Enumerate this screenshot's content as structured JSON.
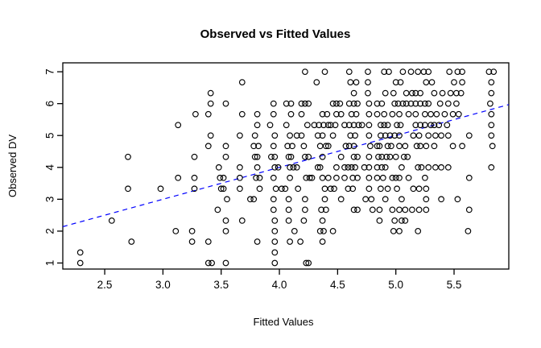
{
  "chart_data": {
    "type": "scatter",
    "title": "Observed vs Fitted Values",
    "xlabel": "Fitted Values",
    "ylabel": "Observed DV",
    "xlim": [
      2.14,
      5.97
    ],
    "ylim": [
      0.81,
      7.28
    ],
    "x_ticks": [
      "2.5",
      "3.0",
      "3.5",
      "4.0",
      "4.5",
      "5.0",
      "5.5"
    ],
    "x_tick_values": [
      2.5,
      3.0,
      3.5,
      4.0,
      4.5,
      5.0,
      5.5
    ],
    "y_ticks": [
      "1",
      "2",
      "3",
      "4",
      "5",
      "6",
      "7"
    ],
    "y_tick_values": [
      1,
      2,
      3,
      4,
      5,
      6,
      7
    ],
    "grid": false,
    "legend": "none",
    "point_style": "open-circle",
    "point_color": "#000000",
    "reference_line": {
      "slope": 1,
      "intercept": 0,
      "style": "dashed",
      "color": "#0000ff"
    },
    "rows": [
      {
        "y": 7.0,
        "x": [
          4.22,
          4.39,
          4.6,
          4.76,
          4.9,
          4.94,
          5.06,
          5.13,
          5.19,
          5.24,
          5.28,
          5.46,
          5.53,
          5.57,
          5.8,
          5.84
        ]
      },
      {
        "y": 6.67,
        "x": [
          3.68,
          4.32,
          4.61,
          4.66,
          4.76,
          5.0,
          5.04,
          5.26,
          5.31,
          5.5,
          5.57,
          5.82
        ]
      },
      {
        "y": 6.33,
        "x": [
          3.41,
          4.64,
          4.76,
          4.91,
          4.98,
          5.09,
          5.14,
          5.17,
          5.21,
          5.33,
          5.4,
          5.47,
          5.52,
          5.56,
          5.82
        ]
      },
      {
        "y": 6.0,
        "x": [
          3.41,
          3.54,
          3.95,
          4.06,
          4.1,
          4.19,
          4.22,
          4.25,
          4.46,
          4.49,
          4.52,
          4.6,
          4.64,
          4.67,
          4.77,
          4.84,
          4.88,
          4.99,
          5.02,
          5.06,
          5.09,
          5.13,
          5.17,
          5.21,
          5.25,
          5.28,
          5.38,
          5.45,
          5.52,
          5.81
        ]
      },
      {
        "y": 5.67,
        "x": [
          3.28,
          3.39,
          3.68,
          3.81,
          3.95,
          4.1,
          4.19,
          4.37,
          4.41,
          4.49,
          4.53,
          4.62,
          4.66,
          4.77,
          4.84,
          4.9,
          4.97,
          5.03,
          5.11,
          5.17,
          5.25,
          5.3,
          5.35,
          5.42,
          5.49,
          5.54,
          5.82
        ]
      },
      {
        "y": 5.33,
        "x": [
          3.13,
          3.81,
          3.92,
          4.06,
          4.24,
          4.3,
          4.34,
          4.38,
          4.42,
          4.44,
          4.48,
          4.56,
          4.6,
          4.64,
          4.68,
          4.71,
          4.77,
          4.87,
          4.9,
          4.93,
          5.01,
          5.04,
          5.17,
          5.21,
          5.25,
          5.3,
          5.33,
          5.37,
          5.44,
          5.82
        ]
      },
      {
        "y": 5.0,
        "x": [
          3.41,
          3.66,
          3.79,
          3.96,
          4.09,
          4.15,
          4.19,
          4.33,
          4.37,
          4.46,
          4.61,
          4.65,
          4.77,
          4.87,
          4.91,
          4.95,
          4.99,
          5.03,
          5.15,
          5.2,
          5.28,
          5.34,
          5.39,
          5.45,
          5.63,
          5.82
        ]
      },
      {
        "y": 4.67,
        "x": [
          3.39,
          3.54,
          3.78,
          3.82,
          3.95,
          4.07,
          4.11,
          4.21,
          4.35,
          4.4,
          4.42,
          4.57,
          4.6,
          4.64,
          4.78,
          4.84,
          4.86,
          4.93,
          4.96,
          5.03,
          5.08,
          5.18,
          5.21,
          5.26,
          5.33,
          5.49,
          5.57,
          5.83
        ]
      },
      {
        "y": 4.33,
        "x": [
          2.7,
          3.27,
          3.54,
          3.79,
          3.81,
          3.93,
          3.96,
          4.08,
          4.1,
          4.22,
          4.25,
          4.37,
          4.53,
          4.64,
          4.67,
          4.77,
          4.85,
          4.88,
          4.92,
          4.95,
          5.0,
          5.07,
          5.1
        ]
      },
      {
        "y": 4.0,
        "x": [
          3.48,
          3.66,
          3.81,
          3.96,
          3.99,
          4.09,
          4.12,
          4.15,
          4.33,
          4.35,
          4.49,
          4.56,
          4.59,
          4.62,
          4.65,
          4.73,
          4.77,
          4.84,
          4.88,
          4.91,
          5.05,
          5.19,
          5.22,
          5.28,
          5.34,
          5.39,
          5.45,
          5.82
        ]
      },
      {
        "y": 3.67,
        "x": [
          3.13,
          3.27,
          3.49,
          3.52,
          3.66,
          3.8,
          3.83,
          3.95,
          4.09,
          4.23,
          4.26,
          4.28,
          4.37,
          4.42,
          4.49,
          4.56,
          4.63,
          4.67,
          4.77,
          4.84,
          4.89,
          4.97,
          5.0,
          5.03,
          5.11,
          5.25,
          5.63
        ]
      },
      {
        "y": 3.33,
        "x": [
          2.7,
          2.98,
          3.27,
          3.5,
          3.52,
          3.66,
          3.83,
          3.97,
          4.02,
          4.05,
          4.16,
          4.39,
          4.44,
          4.47,
          4.59,
          4.63,
          4.77,
          4.87,
          4.93,
          5.01,
          5.15,
          5.2,
          5.26
        ]
      },
      {
        "y": 3.0,
        "x": [
          3.55,
          3.75,
          3.78,
          3.95,
          4.08,
          4.22,
          4.39,
          4.53,
          4.74,
          4.79,
          4.91,
          5.05,
          5.26,
          5.39,
          5.53
        ]
      },
      {
        "y": 2.67,
        "x": [
          3.47,
          3.95,
          4.08,
          4.22,
          4.36,
          4.4,
          4.64,
          4.67,
          4.8,
          4.86,
          4.97,
          5.03,
          5.08,
          5.14,
          5.2,
          5.26,
          5.63
        ]
      },
      {
        "y": 2.33,
        "x": [
          2.56,
          3.54,
          3.68,
          3.96,
          4.08,
          4.21,
          4.37,
          4.86,
          4.99,
          5.05,
          5.08
        ]
      },
      {
        "y": 2.0,
        "x": [
          3.11,
          3.25,
          3.54,
          3.96,
          4.13,
          4.35,
          4.38,
          4.46,
          4.98,
          5.03,
          5.19,
          5.62
        ]
      },
      {
        "y": 1.67,
        "x": [
          2.73,
          3.25,
          3.39,
          3.81,
          3.96,
          4.09,
          4.18,
          4.37
        ]
      },
      {
        "y": 1.33,
        "x": [
          2.29,
          3.96
        ]
      },
      {
        "y": 1.0,
        "x": [
          2.29,
          3.39,
          3.42,
          3.54,
          3.96,
          4.23,
          4.25
        ]
      }
    ],
    "frame_color": "#000000",
    "background": "#ffffff"
  }
}
